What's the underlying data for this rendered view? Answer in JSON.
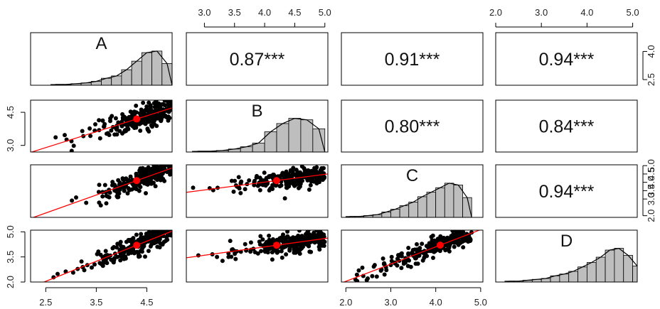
{
  "chart_data": {
    "type": "scatter",
    "subtype": "pairs-panels",
    "variables": [
      "A",
      "B",
      "C",
      "D"
    ],
    "colors": {
      "points": "#000000",
      "fit": "#ff0000",
      "centroid": "#ff0000",
      "hist_fill": "#bebebe"
    },
    "axes": {
      "A": {
        "range": [
          2.2,
          5.0
        ],
        "ticks": [
          2.5,
          3.5,
          4.5
        ],
        "tick_labels": [
          "2.5",
          "3.5",
          "4.5"
        ]
      },
      "B": {
        "range": [
          2.7,
          5.05
        ],
        "ticks": [
          3.0,
          3.5,
          4.0,
          4.5,
          5.0
        ],
        "tick_labels": [
          "3.0",
          "3.5",
          "4.0",
          "4.5",
          "5.0"
        ],
        "left_ticks": [
          3.0,
          4.5
        ],
        "left_tick_labels": [
          "3.0",
          "4.5"
        ]
      },
      "C": {
        "range": [
          1.9,
          5.05
        ],
        "ticks": [
          2.0,
          3.0,
          4.0,
          5.0
        ],
        "tick_labels": [
          "2.0",
          "3.0",
          "4.0",
          "5.0"
        ],
        "right_ticks": [
          2.0,
          3.0,
          3.5,
          4.0,
          4.5,
          5.0
        ],
        "right_tick_labels": [
          "2.0",
          "3.0",
          "3.5",
          "4.0",
          "4.5",
          "5.0"
        ]
      },
      "D": {
        "range": [
          2.0,
          5.1
        ],
        "ticks": [
          2.0,
          3.0,
          4.0,
          5.0
        ],
        "tick_labels": [
          "2.0",
          "3.0",
          "4.0",
          "5.0"
        ],
        "left_ticks": [
          2.0,
          3.5,
          5.0
        ],
        "left_tick_labels": [
          "2.0",
          "3.5",
          "5.0"
        ],
        "right_ticks": [
          2.5,
          4.0
        ],
        "right_tick_labels": [
          "2.5",
          "4.0"
        ]
      }
    },
    "correlations": [
      {
        "pair": [
          "A",
          "B"
        ],
        "label": "0.87***"
      },
      {
        "pair": [
          "A",
          "C"
        ],
        "label": "0.91***"
      },
      {
        "pair": [
          "A",
          "D"
        ],
        "label": "0.94***"
      },
      {
        "pair": [
          "B",
          "C"
        ],
        "label": "0.80***"
      },
      {
        "pair": [
          "B",
          "D"
        ],
        "label": "0.84***"
      },
      {
        "pair": [
          "C",
          "D"
        ],
        "label": "0.94***"
      }
    ],
    "means": {
      "A": 4.3,
      "B": 4.2,
      "C": 4.1,
      "D": 4.2
    },
    "fit_lines": [
      {
        "x": "A",
        "y": "B",
        "slope": 0.72,
        "intercept": 1.1
      },
      {
        "x": "A",
        "y": "C",
        "slope": 1.08,
        "intercept": -0.54
      },
      {
        "x": "A",
        "y": "D",
        "slope": 1.2,
        "intercept": -0.96
      },
      {
        "x": "B",
        "y": "C",
        "slope": 0.47,
        "intercept": 2.13
      },
      {
        "x": "B",
        "y": "D",
        "slope": 0.5,
        "intercept": 2.1
      },
      {
        "x": "C",
        "y": "D",
        "slope": 1.03,
        "intercept": -0.02
      }
    ],
    "histograms": {
      "A": {
        "bins": [
          2.6,
          2.8,
          3.0,
          3.2,
          3.4,
          3.6,
          3.8,
          4.0,
          4.2,
          4.4,
          4.6,
          4.8,
          5.0
        ],
        "counts": [
          1,
          1,
          2,
          3,
          5,
          9,
          12,
          20,
          31,
          42,
          44,
          28
        ]
      },
      "B": {
        "bins": [
          2.8,
          3.0,
          3.2,
          3.4,
          3.6,
          3.8,
          4.0,
          4.2,
          4.4,
          4.6,
          4.8,
          5.0
        ],
        "counts": [
          1,
          1,
          2,
          4,
          7,
          12,
          27,
          38,
          45,
          43,
          31
        ]
      },
      "C": {
        "bins": [
          2.0,
          2.2,
          2.4,
          2.6,
          2.8,
          3.0,
          3.2,
          3.4,
          3.6,
          3.8,
          4.0,
          4.2,
          4.4,
          4.6,
          4.8
        ],
        "counts": [
          1,
          1,
          2,
          3,
          6,
          9,
          13,
          17,
          23,
          28,
          33,
          38,
          36,
          22
        ]
      },
      "D": {
        "bins": [
          2.2,
          2.4,
          2.6,
          2.8,
          3.0,
          3.2,
          3.4,
          3.6,
          3.8,
          4.0,
          4.2,
          4.4,
          4.6,
          4.8,
          5.0,
          5.2
        ],
        "counts": [
          1,
          1,
          2,
          3,
          4,
          7,
          9,
          12,
          17,
          22,
          28,
          36,
          38,
          30,
          18
        ]
      }
    }
  }
}
